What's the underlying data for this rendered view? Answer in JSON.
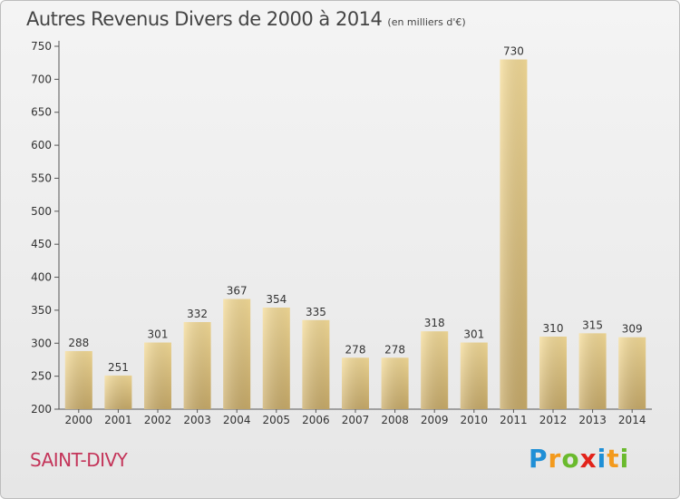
{
  "title": {
    "main": "Autres Revenus Divers de 2000 à 2014",
    "unit": "(en milliers d'€)"
  },
  "place": "SAINT-DIVY",
  "brand": {
    "letters": [
      {
        "ch": "P",
        "color": "#1f8fd6"
      },
      {
        "ch": "r",
        "color": "#f39a1d"
      },
      {
        "ch": "o",
        "color": "#6aba2d"
      },
      {
        "ch": "x",
        "color": "#e2231a"
      },
      {
        "ch": "i",
        "color": "#1f8fd6"
      },
      {
        "ch": "t",
        "color": "#f39a1d"
      },
      {
        "ch": "i",
        "color": "#6aba2d"
      }
    ]
  },
  "chart_data": {
    "type": "bar",
    "categories": [
      "2000",
      "2001",
      "2002",
      "2003",
      "2004",
      "2005",
      "2006",
      "2007",
      "2008",
      "2009",
      "2010",
      "2011",
      "2012",
      "2013",
      "2014"
    ],
    "values": [
      288,
      251,
      301,
      332,
      367,
      354,
      335,
      278,
      278,
      318,
      301,
      730,
      310,
      315,
      309
    ],
    "ylim": [
      200,
      750
    ],
    "yticks": [
      200,
      250,
      300,
      350,
      400,
      450,
      500,
      550,
      600,
      650,
      700,
      750
    ],
    "grid": false,
    "colors": {
      "bar_light": "#f5dc98",
      "bar_dark": "#c9ac6a",
      "axis": "#555555",
      "text": "#333333"
    }
  }
}
